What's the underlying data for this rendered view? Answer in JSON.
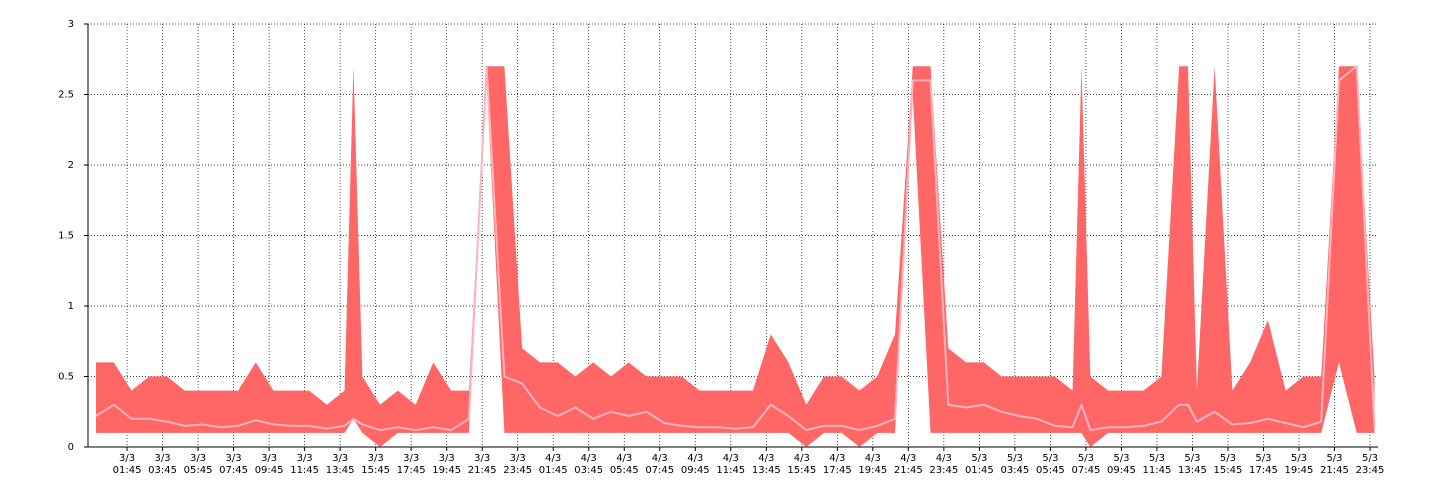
{
  "chart_data": {
    "type": "band-line",
    "x": [
      0,
      1,
      2,
      3,
      4,
      5,
      6,
      7,
      8,
      9,
      10,
      11,
      12,
      13,
      14,
      14.5,
      15,
      16,
      17,
      18,
      19,
      20,
      21,
      22,
      23,
      24,
      25,
      26,
      27,
      28,
      29,
      30,
      31,
      32,
      33,
      34,
      35,
      36,
      37,
      38,
      39,
      40,
      41,
      42,
      43,
      44,
      45,
      46,
      47,
      48,
      49,
      50,
      51,
      52,
      53,
      54,
      55,
      55.5,
      56,
      57,
      58,
      59,
      60,
      61,
      61.5,
      62,
      63,
      64,
      65,
      66,
      67,
      68,
      69,
      70,
      71,
      72
    ],
    "band": {
      "color": "#ff6666",
      "upper": [
        0.6,
        0.6,
        0.4,
        0.5,
        0.5,
        0.4,
        0.4,
        0.4,
        0.4,
        0.6,
        0.4,
        0.4,
        0.4,
        0.3,
        0.4,
        2.7,
        0.5,
        0.3,
        0.4,
        0.3,
        0.6,
        0.4,
        0.4,
        2.7,
        2.7,
        0.7,
        0.6,
        0.6,
        0.5,
        0.6,
        0.5,
        0.6,
        0.5,
        0.5,
        0.5,
        0.4,
        0.4,
        0.4,
        0.4,
        0.8,
        0.6,
        0.3,
        0.5,
        0.5,
        0.4,
        0.5,
        0.8,
        2.7,
        2.7,
        0.7,
        0.6,
        0.6,
        0.5,
        0.5,
        0.5,
        0.5,
        0.4,
        2.7,
        0.5,
        0.4,
        0.4,
        0.4,
        0.5,
        2.7,
        2.7,
        0.4,
        2.7,
        0.4,
        0.6,
        0.9,
        0.4,
        0.5,
        0.5,
        2.7,
        2.7,
        0.5
      ],
      "lower": [
        0.1,
        0.1,
        0.1,
        0.1,
        0.1,
        0.1,
        0.1,
        0.1,
        0.1,
        0.1,
        0.1,
        0.1,
        0.1,
        0.1,
        0.1,
        0.2,
        0.1,
        0,
        0.1,
        0.1,
        0.1,
        0.1,
        0.1,
        2.6,
        0.1,
        0.1,
        0.1,
        0.1,
        0.1,
        0.1,
        0.1,
        0.1,
        0.1,
        0.1,
        0.1,
        0.1,
        0.1,
        0.1,
        0.1,
        0.1,
        0.1,
        0,
        0.1,
        0.1,
        0,
        0.1,
        0.1,
        2.5,
        0.1,
        0.1,
        0.1,
        0.1,
        0.1,
        0.1,
        0.1,
        0.1,
        0.1,
        0.1,
        0,
        0.1,
        0.1,
        0.1,
        0.1,
        0.1,
        0.1,
        0.1,
        0.1,
        0.1,
        0.1,
        0.1,
        0.1,
        0.1,
        0.1,
        0.6,
        0.1,
        0.1
      ]
    },
    "line": {
      "color": "#ffb3bd",
      "values": [
        0.22,
        0.3,
        0.2,
        0.2,
        0.18,
        0.15,
        0.16,
        0.14,
        0.15,
        0.19,
        0.16,
        0.15,
        0.15,
        0.13,
        0.15,
        0.2,
        0.16,
        0.12,
        0.14,
        0.12,
        0.14,
        0.12,
        0.2,
        2.7,
        0.5,
        0.45,
        0.28,
        0.22,
        0.28,
        0.2,
        0.25,
        0.22,
        0.25,
        0.17,
        0.15,
        0.14,
        0.14,
        0.13,
        0.14,
        0.3,
        0.22,
        0.12,
        0.15,
        0.15,
        0.12,
        0.15,
        0.2,
        2.6,
        2.6,
        0.3,
        0.28,
        0.3,
        0.25,
        0.22,
        0.2,
        0.15,
        0.14,
        0.3,
        0.12,
        0.14,
        0.14,
        0.15,
        0.18,
        0.3,
        0.3,
        0.18,
        0.25,
        0.16,
        0.17,
        0.2,
        0.17,
        0.14,
        0.18,
        2.6,
        2.7,
        0.15
      ]
    },
    "xlim": [
      -0.45,
      72.2
    ],
    "xticks": [
      {
        "value": 1.75,
        "label": "3/3 01:45"
      },
      {
        "value": 3.75,
        "label": "3/3 03:45"
      },
      {
        "value": 5.75,
        "label": "3/3 05:45"
      },
      {
        "value": 7.75,
        "label": "3/3 07:45"
      },
      {
        "value": 9.75,
        "label": "3/3 09:45"
      },
      {
        "value": 11.75,
        "label": "3/3 11:45"
      },
      {
        "value": 13.75,
        "label": "3/3 13:45"
      },
      {
        "value": 15.75,
        "label": "3/3 15:45"
      },
      {
        "value": 17.75,
        "label": "3/3 17:45"
      },
      {
        "value": 19.75,
        "label": "3/3 19:45"
      },
      {
        "value": 21.75,
        "label": "3/3 21:45"
      },
      {
        "value": 23.75,
        "label": "3/3 23:45"
      },
      {
        "value": 25.75,
        "label": "4/3 01:45"
      },
      {
        "value": 27.75,
        "label": "4/3 03:45"
      },
      {
        "value": 29.75,
        "label": "4/3 05:45"
      },
      {
        "value": 31.75,
        "label": "4/3 07:45"
      },
      {
        "value": 33.75,
        "label": "4/3 09:45"
      },
      {
        "value": 35.75,
        "label": "4/3 11:45"
      },
      {
        "value": 37.75,
        "label": "4/3 13:45"
      },
      {
        "value": 39.75,
        "label": "4/3 15:45"
      },
      {
        "value": 41.75,
        "label": "4/3 17:45"
      },
      {
        "value": 43.75,
        "label": "4/3 19:45"
      },
      {
        "value": 45.75,
        "label": "4/3 21:45"
      },
      {
        "value": 47.75,
        "label": "4/3 23:45"
      },
      {
        "value": 49.75,
        "label": "5/3 01:45"
      },
      {
        "value": 51.75,
        "label": "5/3 03:45"
      },
      {
        "value": 53.75,
        "label": "5/3 05:45"
      },
      {
        "value": 55.75,
        "label": "5/3 07:45"
      },
      {
        "value": 57.75,
        "label": "5/3 09:45"
      },
      {
        "value": 59.75,
        "label": "5/3 11:45"
      },
      {
        "value": 61.75,
        "label": "5/3 13:45"
      },
      {
        "value": 63.75,
        "label": "5/3 15:45"
      },
      {
        "value": 65.75,
        "label": "5/3 17:45"
      },
      {
        "value": 67.75,
        "label": "5/3 19:45"
      },
      {
        "value": 69.75,
        "label": "5/3 21:45"
      },
      {
        "value": 71.75,
        "label": "5/3 23:45"
      }
    ],
    "ylim": [
      0,
      3
    ],
    "yticks": [
      0,
      0.5,
      1,
      1.5,
      2,
      2.5,
      3
    ],
    "grid": true
  }
}
